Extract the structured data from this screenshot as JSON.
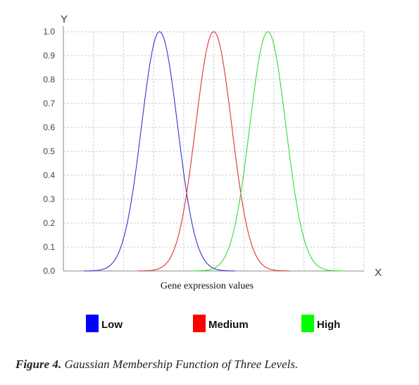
{
  "chart_data": {
    "type": "line",
    "xlabel": "Gene expression values",
    "x_axis_letter": "X",
    "y_axis_letter": "Y",
    "ylim": [
      0,
      1.0
    ],
    "yticks": [
      "0.0",
      "0.1",
      "0.2",
      "0.3",
      "0.4",
      "0.5",
      "0.6",
      "0.7",
      "0.8",
      "0.9",
      "1.0"
    ],
    "grid": true,
    "legend_position": "bottom",
    "series": [
      {
        "name": "Low",
        "color": "#3333cc",
        "curve": "gaussian",
        "center": 0.32,
        "sigma": 0.06
      },
      {
        "name": "Medium",
        "color": "#dd3333",
        "curve": "gaussian",
        "center": 0.5,
        "sigma": 0.06
      },
      {
        "name": "High",
        "color": "#33dd33",
        "curve": "gaussian",
        "center": 0.68,
        "sigma": 0.06
      }
    ],
    "legend_swatch_colors": [
      "#0000ff",
      "#ff0000",
      "#00ff00"
    ]
  },
  "caption": {
    "label": "Figure 4.",
    "text": "Gaussian Membership Function of Three Levels."
  }
}
